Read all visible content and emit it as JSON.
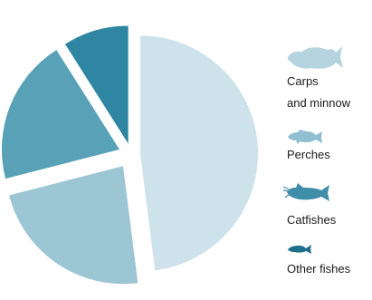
{
  "chart_data": {
    "type": "pie",
    "exploded": true,
    "start_angle_deg": 0,
    "direction": "clockwise",
    "series": [
      {
        "name": "",
        "slices": [
          {
            "label_lines": [
              "Carps",
              "and minnow"
            ],
            "value": 48,
            "color": "#cde2ea",
            "icon": "carp-icon"
          },
          {
            "label_lines": [
              "Perches"
            ],
            "value": 23,
            "color": "#9cc6d4",
            "icon": "perch-icon"
          },
          {
            "label_lines": [
              "Catfishes"
            ],
            "value": 20,
            "color": "#58a1b7",
            "icon": "catfish-icon"
          },
          {
            "label_lines": [
              "Other fishes"
            ],
            "value": 9,
            "color": "#2f86a2",
            "icon": "minnow-icon"
          }
        ]
      }
    ],
    "legend_placement": "right"
  }
}
